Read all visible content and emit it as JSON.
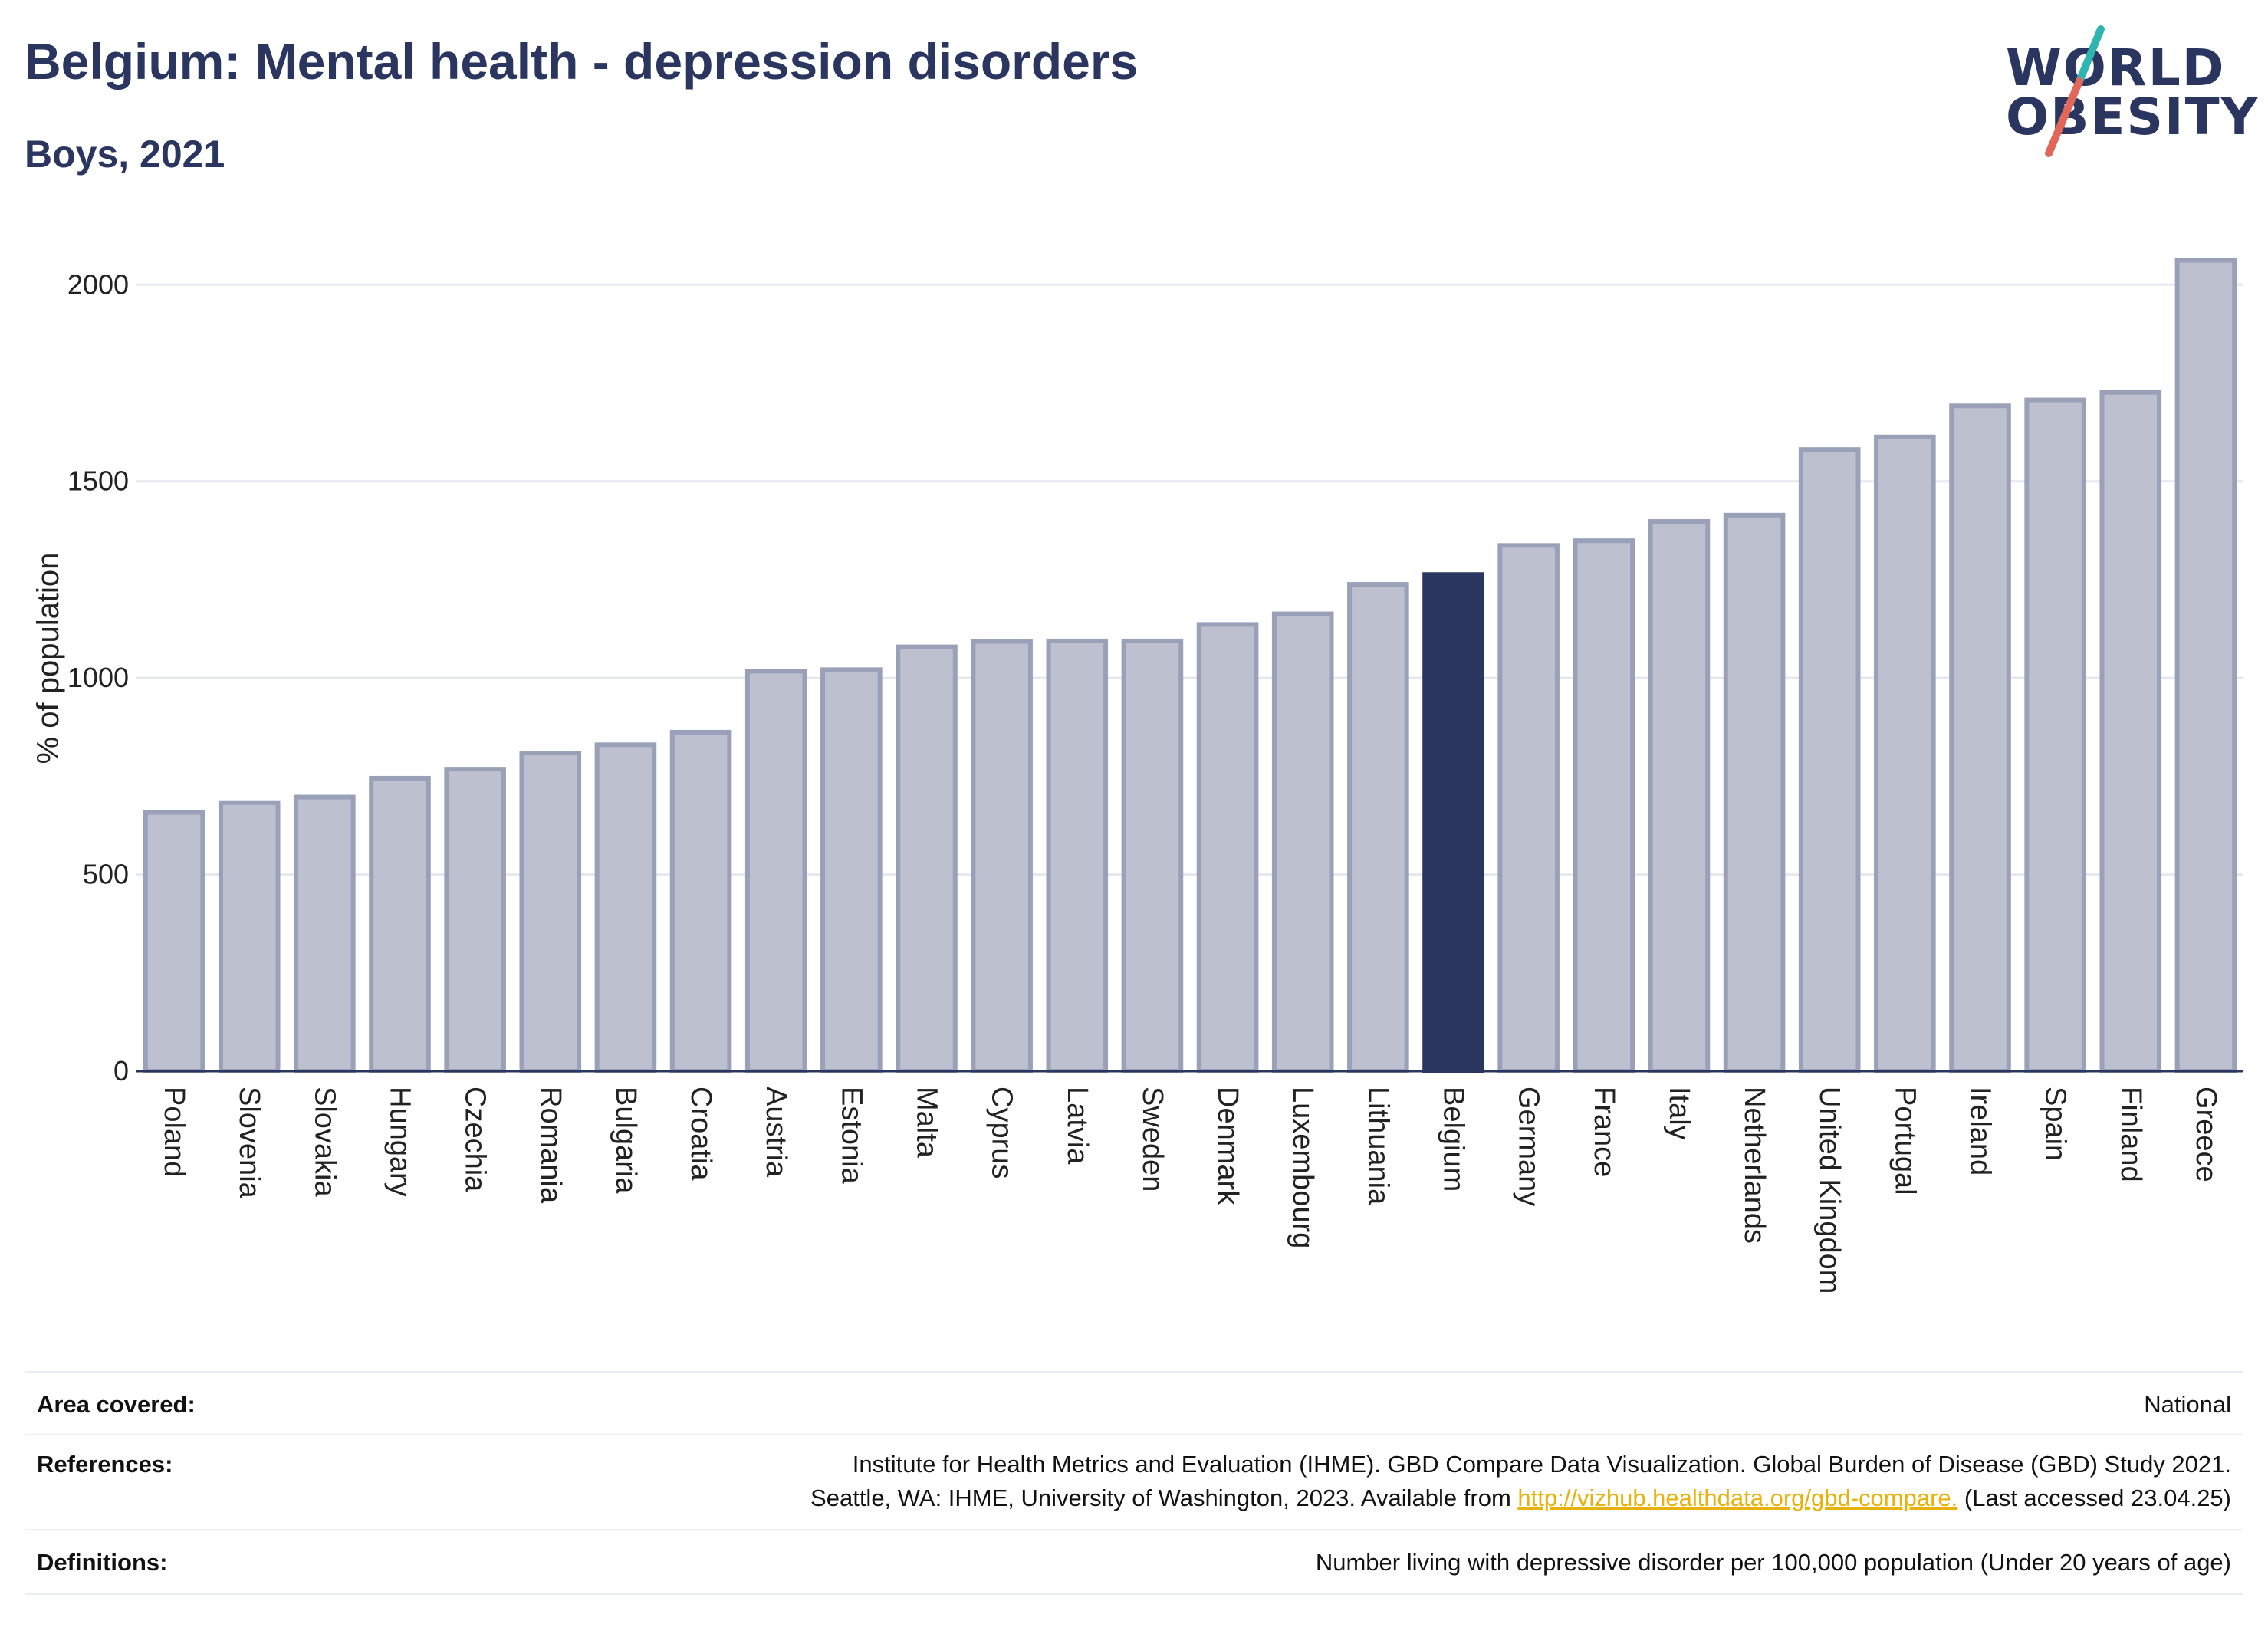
{
  "header": {
    "title": "Belgium: Mental health - depression disorders",
    "subtitle": "Boys, 2021"
  },
  "logo": {
    "line1": "WORLD",
    "line2": "OBESITY",
    "slash_color_top": "#2fb5b0",
    "slash_color_bottom": "#e2675a"
  },
  "colors": {
    "highlight": "#2a3560",
    "bar_fill": "#bcc0cf",
    "bar_stroke": "#9aa0b8",
    "grid": "#e6e8ef"
  },
  "chart_data": {
    "type": "bar",
    "ylabel": "% of population",
    "xlabel": "",
    "ylim": [
      0,
      2100
    ],
    "yticks": [
      0,
      500,
      1000,
      1500,
      2000
    ],
    "highlight": "Belgium",
    "categories": [
      "Poland",
      "Slovenia",
      "Slovakia",
      "Hungary",
      "Czechia",
      "Romania",
      "Bulgaria",
      "Croatia",
      "Austria",
      "Estonia",
      "Malta",
      "Cyprus",
      "Latvia",
      "Sweden",
      "Denmark",
      "Luxembourg",
      "Lithuania",
      "Belgium",
      "Germany",
      "France",
      "Italy",
      "Netherlands",
      "United Kingdom",
      "Portugal",
      "Ireland",
      "Spain",
      "Finland",
      "Greece"
    ],
    "values": [
      658,
      683,
      697,
      745,
      768,
      809,
      830,
      862,
      1017,
      1021,
      1079,
      1093,
      1094,
      1094,
      1136,
      1163,
      1238,
      1263,
      1337,
      1349,
      1398,
      1414,
      1581,
      1613,
      1692,
      1707,
      1726,
      2062
    ]
  },
  "footer": {
    "area_label": "Area covered:",
    "area_value": "National",
    "references_label": "References:",
    "references_line1": "Institute for Health Metrics and Evaluation (IHME). GBD Compare Data Visualization. Global Burden of Disease (GBD) Study 2021.",
    "references_line2_pre": "Seattle, WA: IHME, University of Washington, 2023. Available from ",
    "references_link": "http://vizhub.healthdata.org/gbd-compare.",
    "references_line2_post": " (Last accessed 23.04.25)",
    "definitions_label": "Definitions:",
    "definitions_value": "Number living with depressive disorder per 100,000 population (Under 20 years of age)"
  }
}
